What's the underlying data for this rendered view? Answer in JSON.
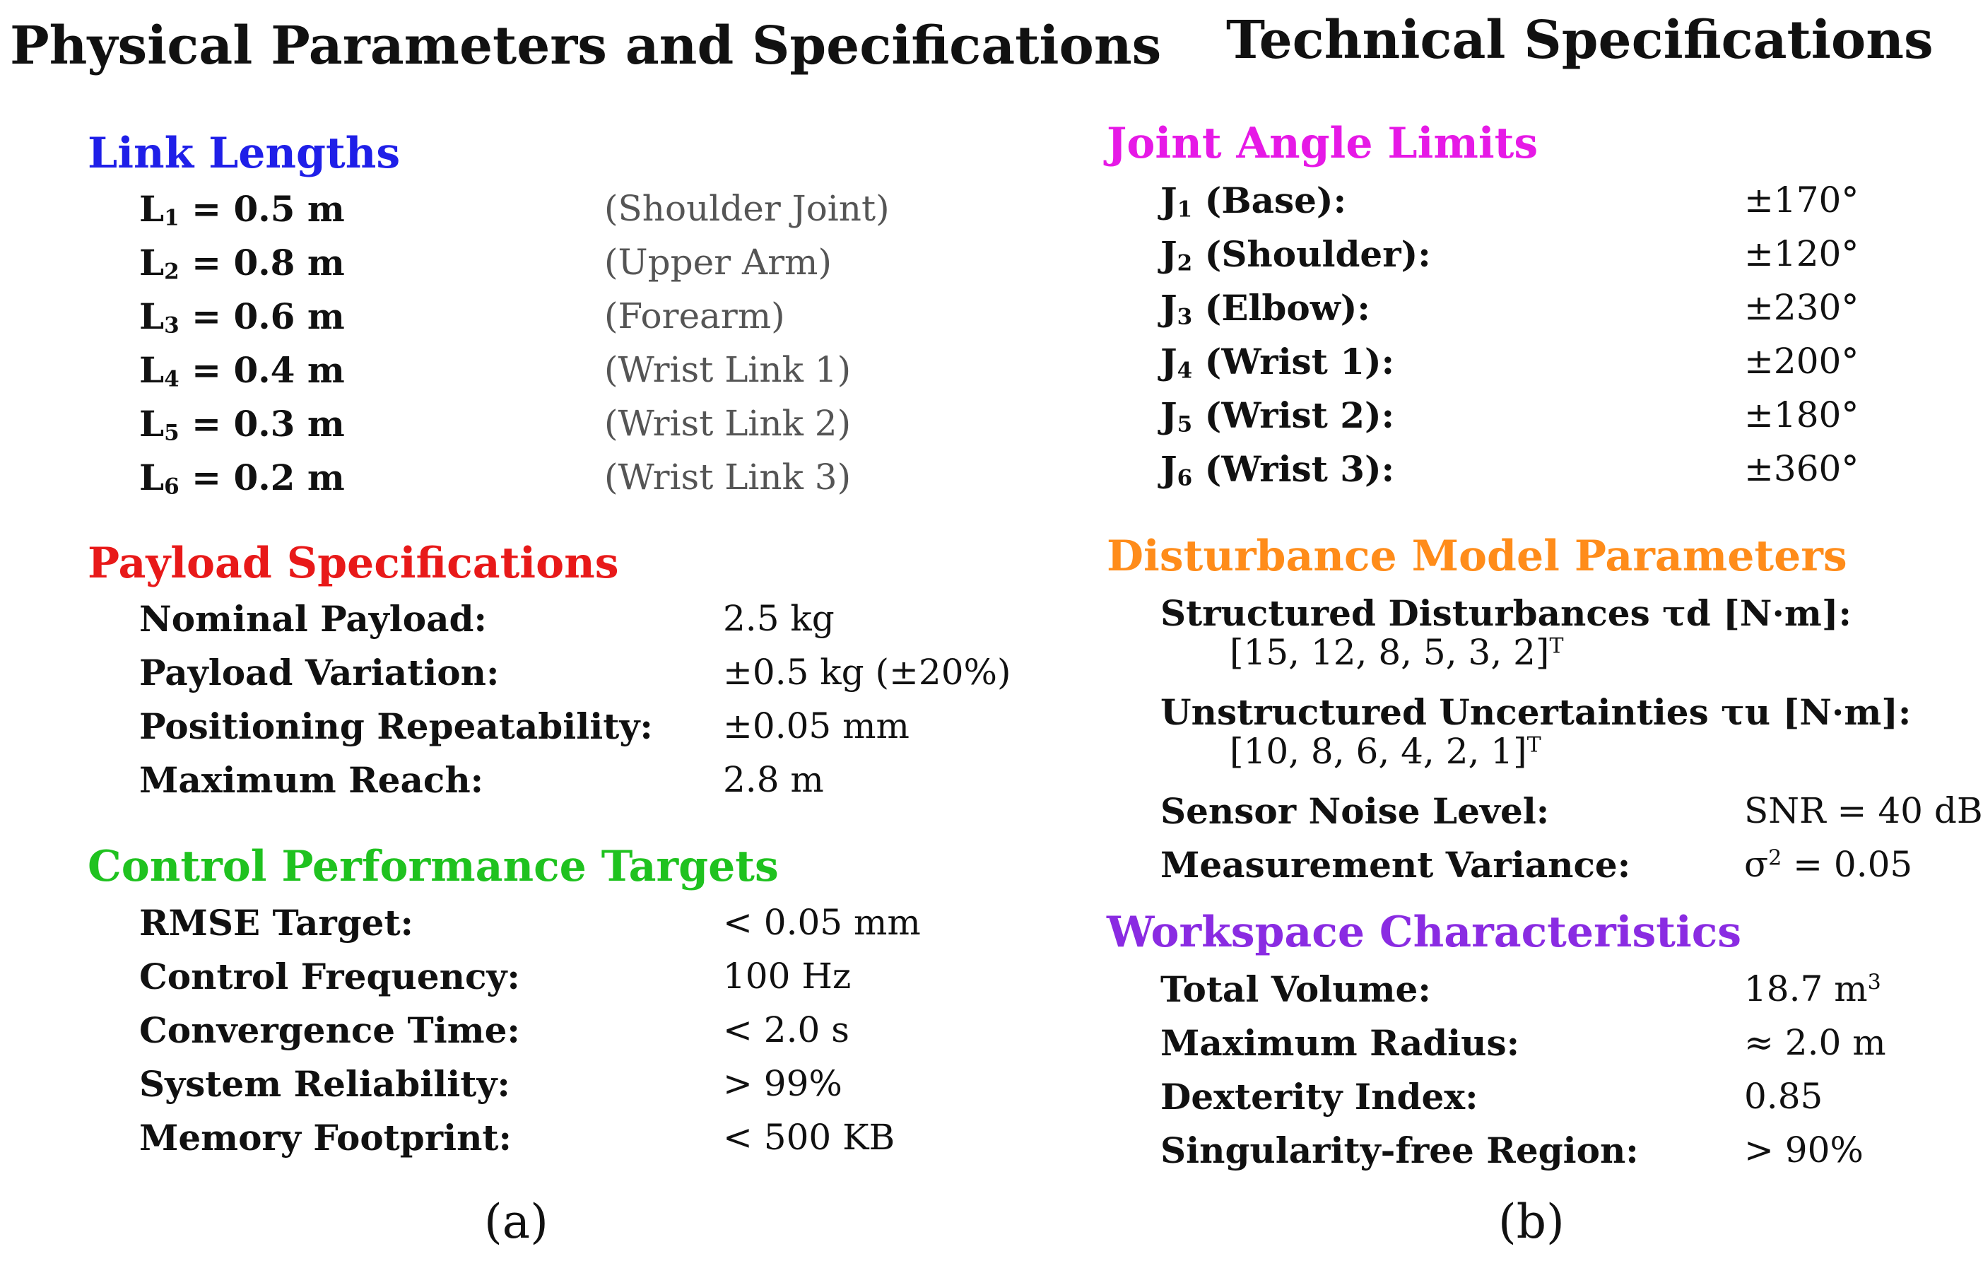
{
  "panel_a": {
    "title": "Physical Parameters and Specifications",
    "caption": "(a)",
    "link_lengths": {
      "heading": "Link Lengths",
      "color": "#1f1fe8",
      "rows": [
        {
          "symbol": "L",
          "sub": "1",
          "value": " = 0.5 m",
          "note": "(Shoulder Joint)"
        },
        {
          "symbol": "L",
          "sub": "2",
          "value": " = 0.8 m",
          "note": "(Upper Arm)"
        },
        {
          "symbol": "L",
          "sub": "3",
          "value": " = 0.6 m",
          "note": "(Forearm)"
        },
        {
          "symbol": "L",
          "sub": "4",
          "value": " = 0.4 m",
          "note": "(Wrist Link 1)"
        },
        {
          "symbol": "L",
          "sub": "5",
          "value": " = 0.3 m",
          "note": "(Wrist Link 2)"
        },
        {
          "symbol": "L",
          "sub": "6",
          "value": " = 0.2 m",
          "note": "(Wrist Link 3)"
        }
      ]
    },
    "payload": {
      "heading": "Payload Specifications",
      "color": "#e81919",
      "rows": [
        {
          "label": "Nominal Payload:",
          "value": "2.5 kg"
        },
        {
          "label": "Payload Variation:",
          "value": "±0.5 kg (±20%)"
        },
        {
          "label": "Positioning Repeatability:",
          "value": "±0.05 mm"
        },
        {
          "label": "Maximum Reach:",
          "value": "2.8 m"
        }
      ]
    },
    "control": {
      "heading": "Control Performance Targets",
      "color": "#1fc21f",
      "rows": [
        {
          "label": "RMSE Target:",
          "value": "< 0.05 mm"
        },
        {
          "label": "Control Frequency:",
          "value": "100 Hz"
        },
        {
          "label": "Convergence Time:",
          "value": "< 2.0 s"
        },
        {
          "label": "System Reliability:",
          "value": "> 99%"
        },
        {
          "label": "Memory Footprint:",
          "value": "< 500 KB"
        }
      ]
    }
  },
  "panel_b": {
    "title": "Technical Specifications",
    "caption": "(b)",
    "joint_limits": {
      "heading": "Joint Angle Limits",
      "color": "#e619e6",
      "rows": [
        {
          "symbol": "J",
          "sub": "1",
          "label": " (Base):",
          "value": "±170°"
        },
        {
          "symbol": "J",
          "sub": "2",
          "label": " (Shoulder):",
          "value": "±120°"
        },
        {
          "symbol": "J",
          "sub": "3",
          "label": " (Elbow):",
          "value": "±230°"
        },
        {
          "symbol": "J",
          "sub": "4",
          "label": " (Wrist 1):",
          "value": "±200°"
        },
        {
          "symbol": "J",
          "sub": "5",
          "label": " (Wrist 2):",
          "value": "±180°"
        },
        {
          "symbol": "J",
          "sub": "6",
          "label": " (Wrist 3):",
          "value": "±360°"
        }
      ]
    },
    "disturbance": {
      "heading": "Disturbance Model Parameters",
      "color": "#ff8c1a",
      "structured_label": "Structured Disturbances τd [N·m]:",
      "structured_value": "[15, 12, 8, 5, 3, 2]",
      "unstructured_label": "Unstructured Uncertainties τu [N·m]:",
      "unstructured_value": "[10, 8, 6, 4, 2, 1]",
      "transpose": "T",
      "noise_label": "Sensor Noise Level:",
      "noise_value": "SNR = 40 dB",
      "variance_label": "Measurement Variance:",
      "variance_sigma": "σ",
      "variance_power": "2",
      "variance_rest": " = 0.05"
    },
    "workspace": {
      "heading": "Workspace Characteristics",
      "color": "#8a2be2",
      "volume_label": "Total Volume:",
      "volume_value": "18.7 m",
      "volume_power": "3",
      "rows": [
        {
          "label": "Maximum Radius:",
          "value": "≈ 2.0 m"
        },
        {
          "label": "Dexterity Index:",
          "value": "0.85"
        },
        {
          "label": "Singularity-free Region:",
          "value": "> 90%"
        }
      ]
    }
  }
}
